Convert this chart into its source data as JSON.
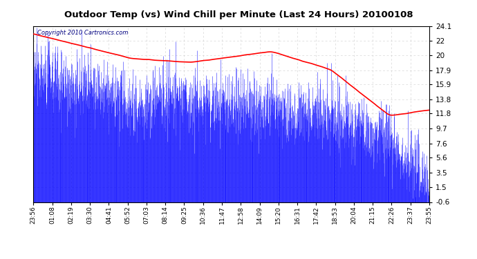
{
  "title": "Outdoor Temp (vs) Wind Chill per Minute (Last 24 Hours) 20100108",
  "copyright_text": "Copyright 2010 Cartronics.com",
  "background_color": "#ffffff",
  "plot_bg_color": "#ffffff",
  "grid_color": "#cccccc",
  "blue_color": "#0000ff",
  "red_color": "#ff0000",
  "yticks": [
    24.1,
    22.0,
    20.0,
    17.9,
    15.9,
    13.8,
    11.8,
    9.7,
    7.6,
    5.6,
    3.5,
    1.5,
    -0.6
  ],
  "ymin": -0.6,
  "ymax": 24.1,
  "xtick_labels": [
    "23:56",
    "01:08",
    "02:19",
    "03:30",
    "04:41",
    "05:52",
    "07:03",
    "08:14",
    "09:25",
    "10:36",
    "11:47",
    "12:58",
    "14:09",
    "15:20",
    "16:31",
    "17:42",
    "18:53",
    "20:04",
    "21:15",
    "22:26",
    "23:37",
    "23:55"
  ],
  "n_points": 1440,
  "seed": 42
}
